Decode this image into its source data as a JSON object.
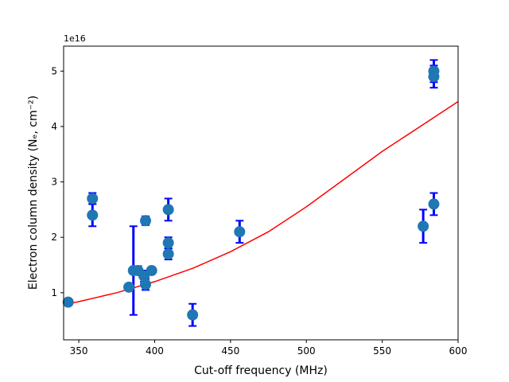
{
  "chart_data": {
    "type": "scatter",
    "title": "",
    "xlabel": "Cut-off frequency (MHz)",
    "ylabel": "Electron column density (Nₑ, cm⁻²)",
    "y_offset_label": "1e16",
    "xlim": [
      340,
      600
    ],
    "ylim": [
      0.15,
      5.45
    ],
    "x_ticks": [
      350,
      400,
      450,
      500,
      550,
      600
    ],
    "y_ticks": [
      1,
      2,
      3,
      4,
      5
    ],
    "x_tick_labels": [
      "350",
      "400",
      "450",
      "500",
      "550",
      "600"
    ],
    "y_tick_labels": [
      "1",
      "2",
      "3",
      "4",
      "5"
    ],
    "grid": false,
    "colors": {
      "points": "#1f77b4",
      "errorbars": "#0000ff",
      "fit": "#ff0000"
    },
    "points": [
      {
        "x": 343,
        "y": 0.83,
        "err_low": 0.0,
        "err_high": 0.0
      },
      {
        "x": 359,
        "y": 2.7,
        "err_low": 0.1,
        "err_high": 0.1
      },
      {
        "x": 359,
        "y": 2.4,
        "err_low": 0.2,
        "err_high": 0.2
      },
      {
        "x": 383,
        "y": 1.1,
        "err_low": 0.05,
        "err_high": 0.05
      },
      {
        "x": 386,
        "y": 1.4,
        "err_low": 0.8,
        "err_high": 0.8
      },
      {
        "x": 389,
        "y": 1.4,
        "err_low": 0.08,
        "err_high": 0.08
      },
      {
        "x": 393,
        "y": 1.3,
        "err_low": 0.1,
        "err_high": 0.1
      },
      {
        "x": 394,
        "y": 1.15,
        "err_low": 0.1,
        "err_high": 0.1
      },
      {
        "x": 394,
        "y": 2.3,
        "err_low": 0.08,
        "err_high": 0.08
      },
      {
        "x": 398,
        "y": 1.4,
        "err_low": 0.05,
        "err_high": 0.05
      },
      {
        "x": 409,
        "y": 2.5,
        "err_low": 0.2,
        "err_high": 0.2
      },
      {
        "x": 409,
        "y": 1.9,
        "err_low": 0.1,
        "err_high": 0.1
      },
      {
        "x": 409,
        "y": 1.7,
        "err_low": 0.1,
        "err_high": 0.1
      },
      {
        "x": 425,
        "y": 0.6,
        "err_low": 0.2,
        "err_high": 0.2
      },
      {
        "x": 456,
        "y": 2.1,
        "err_low": 0.2,
        "err_high": 0.2
      },
      {
        "x": 577,
        "y": 2.2,
        "err_low": 0.3,
        "err_high": 0.3
      },
      {
        "x": 584,
        "y": 2.6,
        "err_low": 0.2,
        "err_high": 0.2
      },
      {
        "x": 584,
        "y": 4.9,
        "err_low": 0.2,
        "err_high": 0.2
      },
      {
        "x": 584,
        "y": 5.0,
        "err_low": 0.2,
        "err_high": 0.2
      }
    ],
    "fit_line": {
      "type": "exponential",
      "x": [
        340,
        350,
        375,
        400,
        425,
        450,
        475,
        500,
        525,
        550,
        575,
        600
      ],
      "y": [
        0.78,
        0.84,
        1.0,
        1.2,
        1.44,
        1.74,
        2.1,
        2.55,
        3.05,
        3.55,
        4.0,
        4.45
      ]
    }
  }
}
